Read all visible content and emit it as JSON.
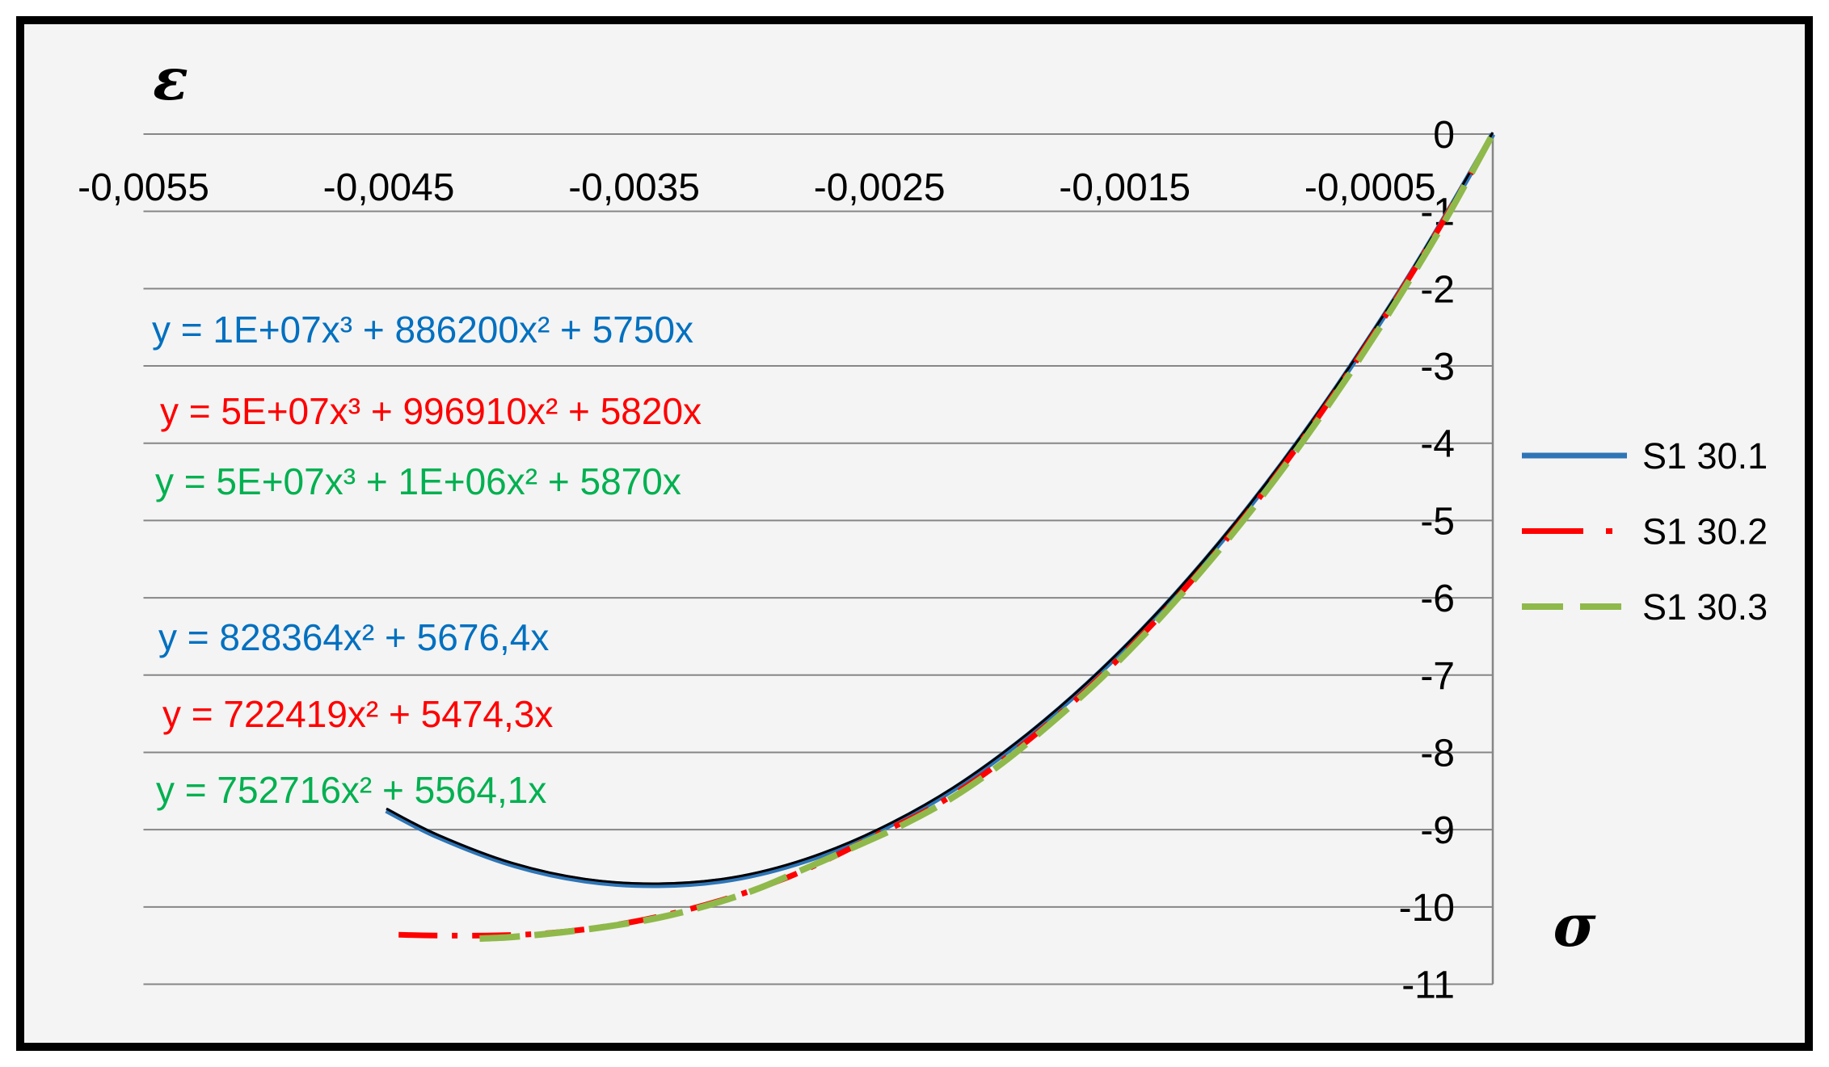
{
  "colors": {
    "frame": "#000000",
    "background": "#f4f4f4",
    "grid": "#868686"
  },
  "chart_data": {
    "type": "line",
    "xlabel": "ε",
    "ylabel": "σ",
    "xlim": [
      -0.0055,
      0
    ],
    "ylim": [
      -11,
      0
    ],
    "grid": true,
    "legend": "right",
    "x_ticks": {
      "values": [
        -0.0055,
        -0.0045,
        -0.0035,
        -0.0025,
        -0.0015,
        -0.0005
      ],
      "labels": [
        "-0,0055",
        "-0,0045",
        "-0,0035",
        "-0,0025",
        "-0,0015",
        "-0,0005"
      ]
    },
    "y_ticks": {
      "values": [
        0,
        -1,
        -2,
        -3,
        -4,
        -5,
        -6,
        -7,
        -8,
        -9,
        -10,
        -11
      ],
      "labels": [
        "0",
        "-1",
        "-2",
        "-3",
        "-4",
        "-5",
        "-6",
        "-7",
        "-8",
        "-9",
        "-10",
        "-11"
      ]
    },
    "series": [
      {
        "name": "S1 30.1",
        "color": "#2e75b6",
        "dash": "solid",
        "trendline_color": "#000000",
        "x": [
          -0.00451,
          -0.0043,
          -0.004,
          -0.0037,
          -0.0034,
          -0.0031,
          -0.0028,
          -0.0025,
          -0.0022,
          -0.0019,
          -0.0016,
          -0.0013,
          -0.001,
          -0.0007,
          -0.0004,
          -0.0002,
          0
        ],
        "y": [
          -8.75,
          -9.09,
          -9.45,
          -9.66,
          -9.72,
          -9.64,
          -9.4,
          -9.01,
          -8.48,
          -7.79,
          -6.96,
          -5.98,
          -4.85,
          -3.57,
          -2.14,
          -1.1,
          0
        ]
      },
      {
        "name": "S1 30.2",
        "color": "#ff0000",
        "dash": "dash-dot",
        "x": [
          -0.00446,
          -0.0043,
          -0.0041,
          -0.0039,
          -0.0037,
          -0.0035,
          -0.0033,
          -0.0031,
          -0.0029,
          -0.0027,
          -0.0025,
          -0.0023,
          -0.0021,
          -0.0019,
          -0.0017,
          -0.0015,
          -0.0013,
          -0.0011,
          -0.0009,
          -0.0007,
          -0.0005,
          -0.0003,
          -0.0001,
          0
        ],
        "y": [
          -10.36,
          -10.37,
          -10.37,
          -10.35,
          -10.29,
          -10.19,
          -10.05,
          -9.87,
          -9.65,
          -9.37,
          -9.05,
          -8.74,
          -8.34,
          -7.86,
          -7.32,
          -6.71,
          -6.04,
          -5.3,
          -4.49,
          -3.61,
          -2.66,
          -1.65,
          -0.57,
          0
        ]
      },
      {
        "name": "S1 30.3",
        "color": "#8fb94b",
        "dash": "dash",
        "x": [
          -0.00413,
          -0.004,
          -0.0038,
          -0.0036,
          -0.0034,
          -0.0032,
          -0.003,
          -0.0028,
          -0.0026,
          -0.0024,
          -0.0022,
          -0.002,
          -0.0018,
          -0.0016,
          -0.0014,
          -0.0012,
          -0.001,
          -0.0008,
          -0.0006,
          -0.0004,
          -0.0002,
          0
        ],
        "y": [
          -10.41,
          -10.39,
          -10.33,
          -10.25,
          -10.14,
          -9.98,
          -9.77,
          -9.5,
          -9.22,
          -8.93,
          -8.58,
          -8.14,
          -7.62,
          -7.05,
          -6.41,
          -5.7,
          -4.93,
          -4.09,
          -3.18,
          -2.2,
          -1.15,
          0
        ]
      }
    ],
    "annotations": [
      {
        "text": "y = 1E+07x³ + 886200x² + 5750x",
        "color": "#0070c0"
      },
      {
        "text": "y = 5E+07x³ + 996910x² + 5820x",
        "color": "#ff0000"
      },
      {
        "text": "y = 5E+07x³ + 1E+06x² + 5870x",
        "color": "#00b050"
      },
      {
        "text": "y = 828364x² + 5676,4x",
        "color": "#0070c0"
      },
      {
        "text": "y = 722419x² + 5474,3x",
        "color": "#ff0000"
      },
      {
        "text": "y = 752716x² + 5564,1x",
        "color": "#00b050"
      }
    ]
  }
}
